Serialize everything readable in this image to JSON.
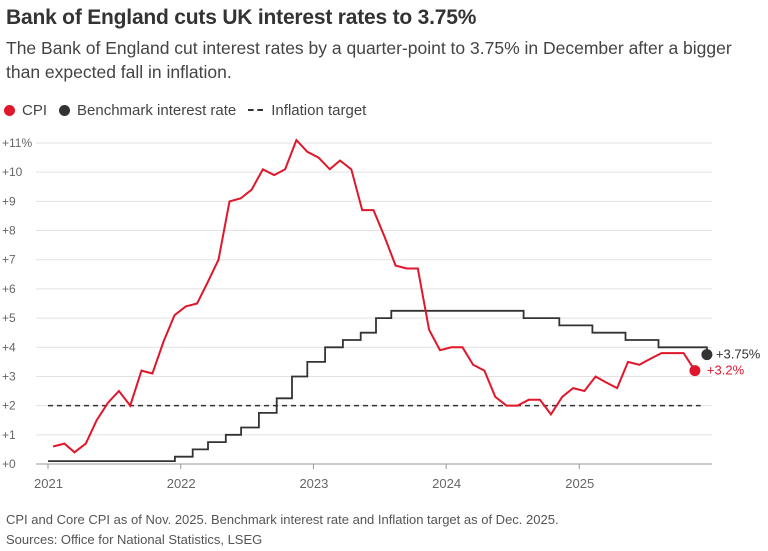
{
  "title": "Bank of England cuts UK interest rates to 3.75%",
  "subtitle": "The Bank of England cut interest rates by a quarter-point to 3.75% in December after a bigger than expected fall in inflation.",
  "legend": {
    "cpi": "CPI",
    "rate": "Benchmark interest rate",
    "target": "Inflation target"
  },
  "colors": {
    "cpi": "#e0162b",
    "rate": "#333333",
    "target": "#333333",
    "grid": "#e2e2e2"
  },
  "footnote": "CPI and Core CPI as of Nov. 2025. Benchmark interest rate and Inflation target as of Dec. 2025.",
  "source": "Sources: Office for National Statistics, LSEG",
  "chart_data": {
    "type": "line",
    "title": "Bank of England cuts UK interest rates to 3.75%",
    "ylim": [
      0,
      11
    ],
    "y_ticks": [
      "+0",
      "+1",
      "+2",
      "+3",
      "+4",
      "+5",
      "+6",
      "+7",
      "+8",
      "+9",
      "+10",
      "+11%"
    ],
    "x_ticks": [
      "2021",
      "2022",
      "2023",
      "2024",
      "2025"
    ],
    "grid": true,
    "legend_position": "top-left",
    "end_labels": {
      "rate": "+3.75%",
      "cpi": "+3.2%"
    },
    "series": [
      {
        "name": "CPI",
        "dates": [
          "2021-01",
          "2021-02",
          "2021-03",
          "2021-04",
          "2021-05",
          "2021-06",
          "2021-07",
          "2021-08",
          "2021-09",
          "2021-10",
          "2021-11",
          "2021-12",
          "2022-01",
          "2022-02",
          "2022-03",
          "2022-04",
          "2022-05",
          "2022-06",
          "2022-07",
          "2022-08",
          "2022-09",
          "2022-10",
          "2022-11",
          "2022-12",
          "2023-01",
          "2023-02",
          "2023-03",
          "2023-04",
          "2023-05",
          "2023-06",
          "2023-07",
          "2023-08",
          "2023-09",
          "2023-10",
          "2023-11",
          "2023-12",
          "2024-01",
          "2024-02",
          "2024-03",
          "2024-04",
          "2024-05",
          "2024-06",
          "2024-07",
          "2024-08",
          "2024-09",
          "2024-10",
          "2024-11",
          "2024-12",
          "2025-01",
          "2025-02",
          "2025-03",
          "2025-04",
          "2025-05",
          "2025-06",
          "2025-07",
          "2025-08",
          "2025-09",
          "2025-10",
          "2025-11"
        ],
        "values": [
          0.6,
          0.7,
          0.4,
          0.7,
          1.5,
          2.1,
          2.5,
          2.0,
          3.2,
          3.1,
          4.2,
          5.1,
          5.4,
          5.5,
          6.2,
          7.0,
          9.0,
          9.1,
          9.4,
          10.1,
          9.9,
          10.1,
          11.1,
          10.7,
          10.5,
          10.1,
          10.4,
          10.1,
          8.7,
          8.7,
          7.8,
          6.8,
          6.7,
          6.7,
          4.6,
          3.9,
          4.0,
          4.0,
          3.4,
          3.2,
          2.3,
          2.0,
          2.0,
          2.2,
          2.2,
          1.7,
          2.3,
          2.6,
          2.5,
          3.0,
          2.8,
          2.6,
          3.5,
          3.4,
          3.6,
          3.8,
          3.8,
          3.8,
          3.2
        ]
      },
      {
        "name": "Benchmark interest rate",
        "steps": [
          {
            "date": "2021-01-01",
            "value": 0.1
          },
          {
            "date": "2021-12-16",
            "value": 0.25
          },
          {
            "date": "2022-02-03",
            "value": 0.5
          },
          {
            "date": "2022-03-17",
            "value": 0.75
          },
          {
            "date": "2022-05-05",
            "value": 1.0
          },
          {
            "date": "2022-06-16",
            "value": 1.25
          },
          {
            "date": "2022-08-04",
            "value": 1.75
          },
          {
            "date": "2022-09-22",
            "value": 2.25
          },
          {
            "date": "2022-11-03",
            "value": 3.0
          },
          {
            "date": "2022-12-15",
            "value": 3.5
          },
          {
            "date": "2023-02-02",
            "value": 4.0
          },
          {
            "date": "2023-03-23",
            "value": 4.25
          },
          {
            "date": "2023-05-11",
            "value": 4.5
          },
          {
            "date": "2023-06-22",
            "value": 5.0
          },
          {
            "date": "2023-08-03",
            "value": 5.25
          },
          {
            "date": "2024-08-01",
            "value": 5.0
          },
          {
            "date": "2024-11-07",
            "value": 4.75
          },
          {
            "date": "2025-02-06",
            "value": 4.5
          },
          {
            "date": "2025-05-08",
            "value": 4.25
          },
          {
            "date": "2025-08-07",
            "value": 4.0
          },
          {
            "date": "2025-12-18",
            "value": 3.75
          }
        ]
      },
      {
        "name": "Inflation target",
        "value": 2,
        "dates": [
          "2021-01",
          "2025-12"
        ]
      }
    ]
  }
}
